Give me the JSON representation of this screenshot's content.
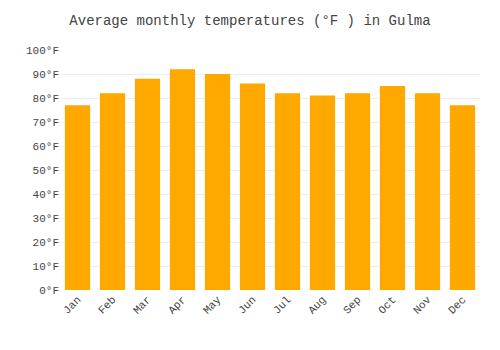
{
  "chart_data": {
    "type": "bar",
    "title": "Average monthly temperatures (°F ) in Gulma",
    "categories": [
      "Jan",
      "Feb",
      "Mar",
      "Apr",
      "May",
      "Jun",
      "Jul",
      "Aug",
      "Sep",
      "Oct",
      "Nov",
      "Dec"
    ],
    "values": [
      77,
      82,
      88,
      92,
      90,
      86,
      82,
      81,
      82,
      85,
      82,
      77
    ],
    "color": "#FFA800",
    "ylim": [
      0,
      100
    ],
    "yticks": [
      {
        "value": 0,
        "label": "0°F"
      },
      {
        "value": 10,
        "label": "10°F"
      },
      {
        "value": 20,
        "label": "20°F"
      },
      {
        "value": 30,
        "label": "30°F"
      },
      {
        "value": 40,
        "label": "40°F"
      },
      {
        "value": 50,
        "label": "50°F"
      },
      {
        "value": 60,
        "label": "60°F"
      },
      {
        "value": 70,
        "label": "70°F"
      },
      {
        "value": 80,
        "label": "80°F"
      },
      {
        "value": 90,
        "label": "90°F"
      },
      {
        "value": 100,
        "label": "100°F"
      }
    ],
    "grid": true
  }
}
